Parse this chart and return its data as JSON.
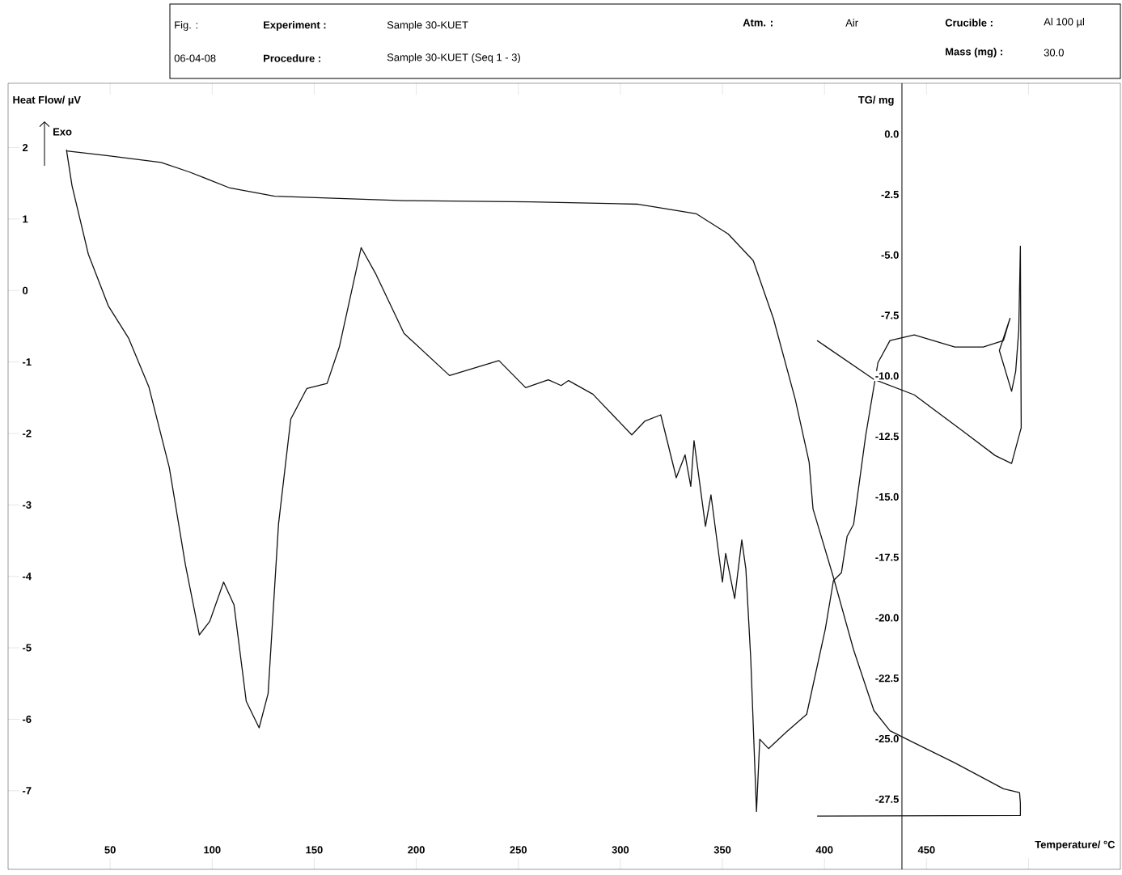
{
  "chart_data": {
    "type": "line",
    "xlabel": "Temperature/ °C",
    "ylabel": "Heat Flow/ µV",
    "y2label": "TG/ mg",
    "xlim": [
      0,
      545
    ],
    "ylim": [
      -8.1,
      2.9
    ],
    "y2lim": [
      -30.4,
      2.1
    ],
    "xticks": [
      50,
      100,
      150,
      200,
      250,
      300,
      350,
      400,
      450,
      {
        "value": 500,
        "label": null
      }
    ],
    "yticks": [
      -7,
      -6,
      -5,
      -4,
      -3,
      -2,
      -1,
      0,
      1,
      2
    ],
    "y2ticks": [
      {
        "value": 0,
        "label": "0.0"
      },
      {
        "value": -2.5,
        "label": "-2.5"
      },
      {
        "value": -5,
        "label": "-5.0"
      },
      {
        "value": -7.5,
        "label": "-7.5"
      },
      {
        "value": -10,
        "label": "-10.0"
      },
      {
        "value": -12.5,
        "label": "-12.5"
      },
      {
        "value": -15,
        "label": "-15.0"
      },
      {
        "value": -17.5,
        "label": "-17.5"
      },
      {
        "value": -20,
        "label": "-20.0"
      },
      {
        "value": -22.5,
        "label": "-22.5"
      },
      {
        "value": -25,
        "label": "-25.0"
      },
      {
        "value": -27.5,
        "label": "-27.5"
      }
    ],
    "annotations": [
      "Fig. :",
      "Experiment :",
      "Sample 30-KUET",
      "Atm. :",
      "Air",
      "Crucible :",
      "Al 100 µl",
      "06-04-08",
      "Procedure :",
      "Sample 30-KUET (Seq  1 -  3)",
      "Mass (mg) :",
      "30.0",
      "Exo"
    ],
    "series": [
      {
        "color": "#111111",
        "x": [
          28.6,
          31.3,
          39.3,
          49.2,
          59.1,
          69,
          79,
          86.9,
          93.7,
          98.8,
          105.6,
          110.7,
          116.7,
          123,
          127.4,
          132.5,
          138.5,
          146.4,
          156.3,
          162.3,
          173,
          180.2,
          194,
          216.3,
          240.5,
          253.6,
          264.7,
          271,
          274.6,
          286.5,
          305.6,
          311.9,
          319.8,
          327.4,
          331.7,
          334.5,
          336.1,
          341.7,
          344.4,
          350,
          351.6,
          356,
          359.5,
          361.5,
          363.9,
          366.7,
          368.3,
          372.6,
          381.3,
          391.3,
          400.4,
          404.4,
          408.3,
          411.1,
          414.3,
          420.2,
          426.2,
          432.1,
          444,
          463.9,
          477.8,
          487.7,
          490.9,
          485.7,
          491.7,
          493.7,
          495.2,
          496,
          496.4,
          491.7,
          483.7,
          467.9,
          444,
          424,
          396.4
        ],
        "values": [
          1.97,
          1.47,
          0.51,
          -0.22,
          -0.67,
          -1.35,
          -2.48,
          -3.84,
          -4.82,
          -4.63,
          -4.08,
          -4.4,
          -5.75,
          -6.12,
          -5.64,
          -3.27,
          -1.8,
          -1.37,
          -1.3,
          -0.79,
          0.6,
          0.23,
          -0.6,
          -1.19,
          -0.98,
          -1.36,
          -1.25,
          -1.33,
          -1.26,
          -1.45,
          -2.02,
          -1.83,
          -1.74,
          -2.62,
          -2.3,
          -2.74,
          -2.1,
          -3.3,
          -2.86,
          -4.08,
          -3.68,
          -4.31,
          -3.49,
          -3.9,
          -5.16,
          -7.29,
          -6.28,
          -6.41,
          -6.18,
          -5.93,
          -4.74,
          -4.06,
          -3.95,
          -3.44,
          -3.27,
          -2.03,
          -1.01,
          -0.7,
          -0.62,
          -0.79,
          -0.79,
          -0.7,
          -0.39,
          -0.84,
          -1.41,
          -1.13,
          -0.56,
          0.62,
          -1.92,
          -2.42,
          -2.31,
          -1.97,
          -1.46,
          -1.24,
          -0.7
        ]
      },
      {
        "axis": "y2",
        "color": "#111111",
        "x": [
          28.6,
          49.2,
          75,
          88.9,
          108.7,
          130.6,
          194,
          256,
          308.7,
          337.3,
          352.8,
          365.1,
          375,
          385.7,
          392.5,
          394.4,
          404.4,
          414.3,
          424.2,
          432.1,
          444,
          463.9,
          487.7,
          495.6,
          496,
          496,
          396.4
        ],
        "values": [
          -0.7,
          -0.9,
          -1.17,
          -1.57,
          -2.23,
          -2.57,
          -2.75,
          -2.8,
          -2.9,
          -3.3,
          -4.13,
          -5.23,
          -7.63,
          -10.97,
          -13.57,
          -15.5,
          -18.33,
          -21.33,
          -23.83,
          -24.67,
          -25.17,
          -26,
          -27.07,
          -27.23,
          -27.67,
          -28.17,
          -28.2
        ]
      }
    ]
  }
}
